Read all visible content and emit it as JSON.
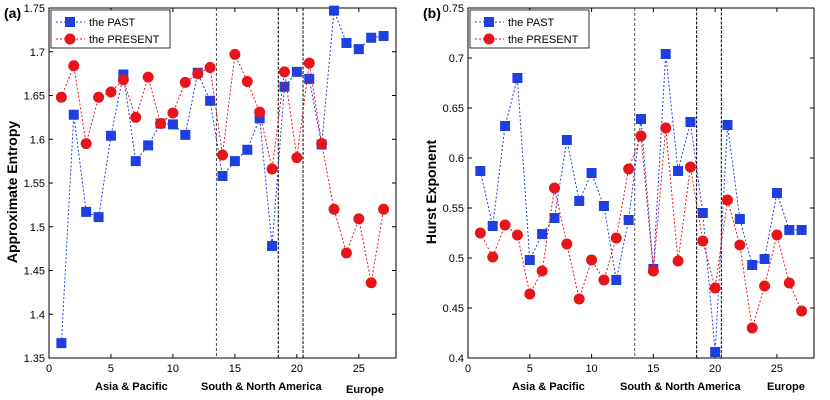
{
  "chart_data": [
    {
      "type": "line",
      "panel_label": "(a)",
      "ylabel": "Approximate Entropy",
      "xlim": [
        0,
        28
      ],
      "ylim": [
        1.35,
        1.75
      ],
      "xticks": [
        "0",
        "5",
        "10",
        "15",
        "20",
        "25"
      ],
      "yticks": [
        "1.35",
        "1.4",
        "1.45",
        "1.5",
        "1.55",
        "1.6",
        "1.65",
        "1.7",
        "1.75"
      ],
      "x": [
        1,
        2,
        3,
        4,
        5,
        6,
        7,
        8,
        9,
        10,
        11,
        12,
        13,
        14,
        15,
        16,
        17,
        18,
        19,
        20,
        21,
        22,
        23,
        24,
        25,
        26,
        27
      ],
      "series": [
        {
          "name": "the PAST",
          "color": "#1f3fe0",
          "marker": "square",
          "values": [
            1.367,
            1.628,
            1.517,
            1.511,
            1.604,
            1.674,
            1.575,
            1.593,
            1.618,
            1.617,
            1.605,
            1.676,
            1.644,
            1.558,
            1.575,
            1.588,
            1.624,
            1.478,
            1.66,
            1.677,
            1.669,
            1.594,
            1.747,
            1.71,
            1.703,
            1.716,
            1.718
          ]
        },
        {
          "name": "the PRESENT",
          "color": "#e8141a",
          "marker": "circle",
          "values": [
            1.648,
            1.684,
            1.595,
            1.648,
            1.654,
            1.668,
            1.625,
            1.671,
            1.618,
            1.63,
            1.665,
            1.675,
            1.682,
            1.582,
            1.697,
            1.666,
            1.631,
            1.566,
            1.677,
            1.579,
            1.687,
            1.595,
            1.52,
            1.47,
            1.509,
            1.436,
            1.52
          ]
        }
      ],
      "vlines": [
        13.5,
        18.5,
        20.5
      ],
      "regions": [
        "Asia & Pacific",
        "South & North America",
        "Europe"
      ],
      "legend_position": "top-left"
    },
    {
      "type": "line",
      "panel_label": "(b)",
      "ylabel": "Hurst Exponent",
      "xlim": [
        0,
        28
      ],
      "ylim": [
        0.4,
        0.75
      ],
      "xticks": [
        "0",
        "5",
        "10",
        "15",
        "20",
        "25"
      ],
      "yticks": [
        "0.4",
        "0.45",
        "0.5",
        "0.55",
        "0.6",
        "0.65",
        "0.7",
        "0.75"
      ],
      "x": [
        1,
        2,
        3,
        4,
        5,
        6,
        7,
        8,
        9,
        10,
        11,
        12,
        13,
        14,
        15,
        16,
        17,
        18,
        19,
        20,
        21,
        22,
        23,
        24,
        25,
        26,
        27
      ],
      "series": [
        {
          "name": "the PAST",
          "color": "#1f3fe0",
          "marker": "square",
          "values": [
            0.587,
            0.532,
            0.632,
            0.68,
            0.498,
            0.524,
            0.54,
            0.618,
            0.557,
            0.585,
            0.552,
            0.478,
            0.538,
            0.639,
            0.489,
            0.704,
            0.587,
            0.636,
            0.545,
            0.406,
            0.633,
            0.539,
            0.493,
            0.499,
            0.565,
            0.528,
            0.528
          ]
        },
        {
          "name": "the PRESENT",
          "color": "#e8141a",
          "marker": "circle",
          "values": [
            0.525,
            0.501,
            0.533,
            0.523,
            0.464,
            0.487,
            0.57,
            0.514,
            0.459,
            0.498,
            0.478,
            0.52,
            0.589,
            0.622,
            0.487,
            0.63,
            0.497,
            0.591,
            0.517,
            0.47,
            0.558,
            0.513,
            0.43,
            0.472,
            0.523,
            0.475,
            0.447
          ]
        }
      ],
      "vlines": [
        13.5,
        18.5,
        20.5
      ],
      "regions": [
        "Asia & Pacific",
        "South & North America",
        "Europe"
      ],
      "legend_position": "top-left"
    }
  ]
}
